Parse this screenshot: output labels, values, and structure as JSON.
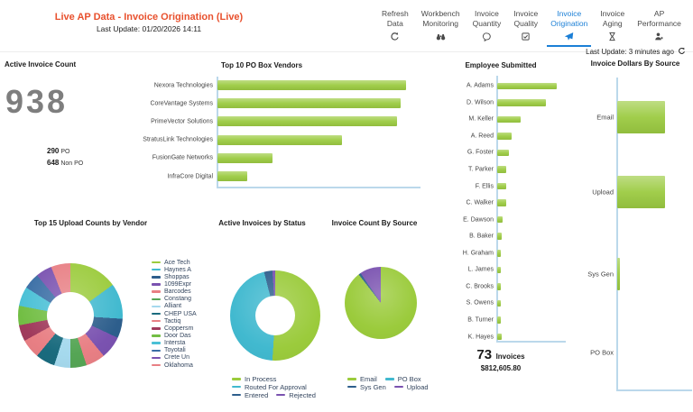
{
  "header": {
    "title": "Live AP Data - Invoice Origination (Live)",
    "last_update": "Last Update: 01/20/2026 14:11",
    "tabs": [
      {
        "id": "refresh-data",
        "label": "Refresh Data",
        "icon": "refresh-icon",
        "active": false
      },
      {
        "id": "workbench-monitoring",
        "label": "Workbench Monitoring",
        "icon": "binoculars-icon",
        "active": false
      },
      {
        "id": "invoice-quantity",
        "label": "Invoice Quantity",
        "icon": "quantity-icon",
        "active": false
      },
      {
        "id": "invoice-quality",
        "label": "Invoice Quality",
        "icon": "checkbox-icon",
        "active": false
      },
      {
        "id": "invoice-origination",
        "label": "Invoice Origination",
        "icon": "paper-plane-icon",
        "active": true
      },
      {
        "id": "invoice-aging",
        "label": "Invoice Aging",
        "icon": "hourglass-icon",
        "active": false
      },
      {
        "id": "ap-performance",
        "label": "AP Performance",
        "icon": "person-icon",
        "active": false
      }
    ]
  },
  "refresh_status": {
    "text": "Last Update: 3 minutes ago",
    "icon": "refresh-icon"
  },
  "kpi": {
    "title": "Active Invoice Count",
    "value": "938",
    "po": {
      "value": "290",
      "label": "PO"
    },
    "non_po": {
      "value": "648",
      "label": "Non PO"
    }
  },
  "colors": {
    "page_title": "#E8512E",
    "active_tab": "#1B7FD6",
    "bar_green": "#9CCB42",
    "axis": "#BBD8EB",
    "kpi_value": "#7E7E7E"
  },
  "chart_data": [
    {
      "id": "po_box_vendors",
      "type": "bar",
      "orientation": "horizontal",
      "title": "Top 10 PO Box Vendors",
      "categories": [
        "Nexora Technologies",
        "CoreVantage Systems",
        "PrimeVector Solutions",
        "StratusLink Technologies",
        "FusionGate Networks",
        "InfraCore Digital"
      ],
      "values": [
        100,
        97,
        95,
        66,
        29,
        16
      ],
      "value_unit": "relative-percent-of-max (no numeric axis shown)",
      "bar_color": "#9CCB42",
      "grid": false,
      "legend": "none"
    },
    {
      "id": "employee_submitted",
      "type": "bar",
      "orientation": "horizontal",
      "title": "Employee Submitted",
      "categories": [
        "A. Adams",
        "D. Wilson",
        "M. Keller",
        "A. Reed",
        "G. Foster",
        "T. Parker",
        "F. Ellis",
        "C. Walker",
        "E. Dawson",
        "B. Baker",
        "H. Graham",
        "L. James",
        "C. Brooks",
        "S. Owens",
        "B. Turner",
        "K. Hayes"
      ],
      "values": [
        100,
        82,
        39,
        24,
        20,
        15,
        15,
        15,
        9,
        7,
        6,
        6,
        6,
        6,
        6,
        7
      ],
      "value_unit": "relative-percent-of-max (no numeric axis shown)",
      "bar_color": "#9CCB42",
      "grid": false,
      "legend": "none",
      "footer": {
        "count": "73",
        "count_label": "Invoices",
        "amount": "$812,605.80"
      }
    },
    {
      "id": "invoice_dollars_by_source",
      "type": "bar",
      "orientation": "horizontal",
      "title": "Invoice Dollars By Source",
      "categories": [
        "Email",
        "Upload",
        "Sys Gen",
        "PO Box"
      ],
      "values": [
        100,
        100,
        5,
        0
      ],
      "value_unit": "relative-percent-of-max (no numeric axis shown)",
      "bar_color": "#9CCB42",
      "grid": false,
      "legend": "none"
    },
    {
      "id": "top15_upload_by_vendor",
      "type": "donut",
      "title": "Top 15 Upload Counts by Vendor",
      "legend_position": "right",
      "slices": [
        {
          "label": "Ace Tech",
          "value": 15,
          "color": "#9BCB3C"
        },
        {
          "label": "Haynes A",
          "value": 11,
          "color": "#41B9CF"
        },
        {
          "label": "Shoppas",
          "value": 6,
          "color": "#2D5E8C"
        },
        {
          "label": "1099Expr",
          "value": 7,
          "color": "#7A52B0"
        },
        {
          "label": "Barcodes",
          "value": 6,
          "color": "#E87F84"
        },
        {
          "label": "Constang",
          "value": 5,
          "color": "#55A555"
        },
        {
          "label": "Alliant",
          "value": 5,
          "color": "#A5D9ED"
        },
        {
          "label": "CHEP USA",
          "value": 6,
          "color": "#1A6B7E"
        },
        {
          "label": "Tactiq",
          "value": 6,
          "color": "#E87F84"
        },
        {
          "label": "Coppersm",
          "value": 5,
          "color": "#A03A5C"
        },
        {
          "label": "Door Das",
          "value": 6,
          "color": "#72BE44"
        },
        {
          "label": "Intersta",
          "value": 6,
          "color": "#4AC0D6"
        },
        {
          "label": "Toyotali",
          "value": 5,
          "color": "#3A6EA5"
        },
        {
          "label": "Crete Un",
          "value": 5,
          "color": "#7A52B0"
        },
        {
          "label": "Oklahoma",
          "value": 6,
          "color": "#E87F84"
        }
      ]
    },
    {
      "id": "active_invoices_by_status",
      "type": "donut",
      "title": "Active Invoices by Status",
      "legend_position": "bottom",
      "slices": [
        {
          "label": "In Process",
          "value": 51,
          "color": "#9BCB3C"
        },
        {
          "label": "Routed For Approval",
          "value": 45,
          "color": "#41B9CF"
        },
        {
          "label": "Entered",
          "value": 3,
          "color": "#2D5E8C"
        },
        {
          "label": "Rejected",
          "value": 1,
          "color": "#7A52B0"
        }
      ],
      "legend_rows": [
        [
          "In Process"
        ],
        [
          "Routed For Approval"
        ],
        [
          "Entered",
          "Rejected"
        ]
      ]
    },
    {
      "id": "invoice_count_by_source",
      "type": "pie",
      "title": "Invoice Count By Source",
      "legend_position": "bottom",
      "slices": [
        {
          "label": "Email",
          "value": 89.5,
          "color": "#9BCB3C"
        },
        {
          "label": "Sys Gen",
          "value": 1,
          "color": "#2D5E8C"
        },
        {
          "label": "Upload",
          "value": 9.5,
          "color": "#7A52B0"
        },
        {
          "label": "PO Box",
          "value": 0,
          "color": "#41B9CF"
        }
      ],
      "legend_rows": [
        [
          "Email",
          "PO Box"
        ],
        [
          "Sys Gen",
          "Upload"
        ]
      ]
    }
  ]
}
